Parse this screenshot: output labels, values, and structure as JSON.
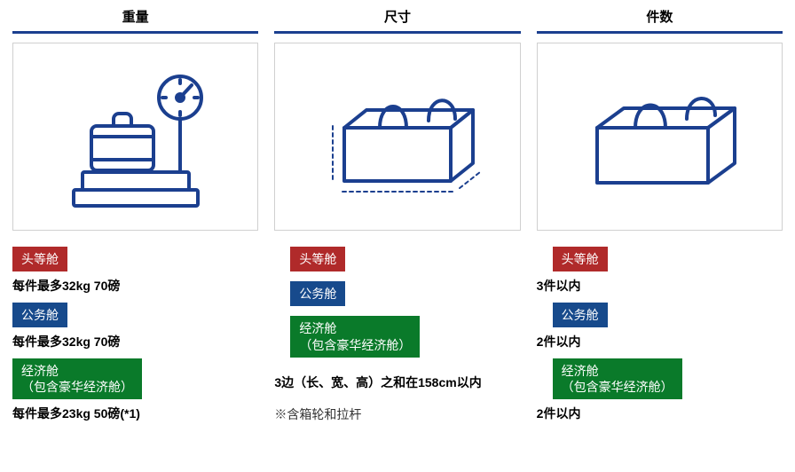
{
  "colors": {
    "brand_blue": "#1b3f8f",
    "badge_red": "#b02a2a",
    "badge_blue": "#174a8c",
    "badge_green": "#0a7a2a",
    "icon_stroke": "#1b3f8f",
    "border_gray": "#d0d0d0"
  },
  "columns": {
    "weight": {
      "header": "重量",
      "rows": [
        {
          "badge_class": "badge-red",
          "badge_lines": [
            "头等舱"
          ],
          "text": "每件最多32kg 70磅"
        },
        {
          "badge_class": "badge-blue",
          "badge_lines": [
            "公务舱"
          ],
          "text": "每件最多32kg 70磅"
        },
        {
          "badge_class": "badge-green",
          "badge_lines": [
            "经济舱",
            "（包含豪华经济舱）"
          ],
          "text": "每件最多23kg 50磅(*1)"
        }
      ]
    },
    "size": {
      "header": "尺寸",
      "badges": [
        {
          "badge_class": "badge-red",
          "badge_lines": [
            "头等舱"
          ]
        },
        {
          "badge_class": "badge-blue",
          "badge_lines": [
            "公务舱"
          ]
        },
        {
          "badge_class": "badge-green",
          "badge_lines": [
            "经济舱",
            "（包含豪华经济舱）"
          ]
        }
      ],
      "text": "3边（长、宽、高）之和在158cm以内",
      "note": "※含箱轮和拉杆"
    },
    "count": {
      "header": "件数",
      "rows": [
        {
          "badge_class": "badge-red",
          "badge_lines": [
            "头等舱"
          ],
          "text": "3件以内"
        },
        {
          "badge_class": "badge-blue",
          "badge_lines": [
            "公务舱"
          ],
          "text": "2件以内"
        },
        {
          "badge_class": "badge-green",
          "badge_lines": [
            "经济舱",
            "（包含豪华经济舱）"
          ],
          "text": "2件以内"
        }
      ]
    }
  }
}
